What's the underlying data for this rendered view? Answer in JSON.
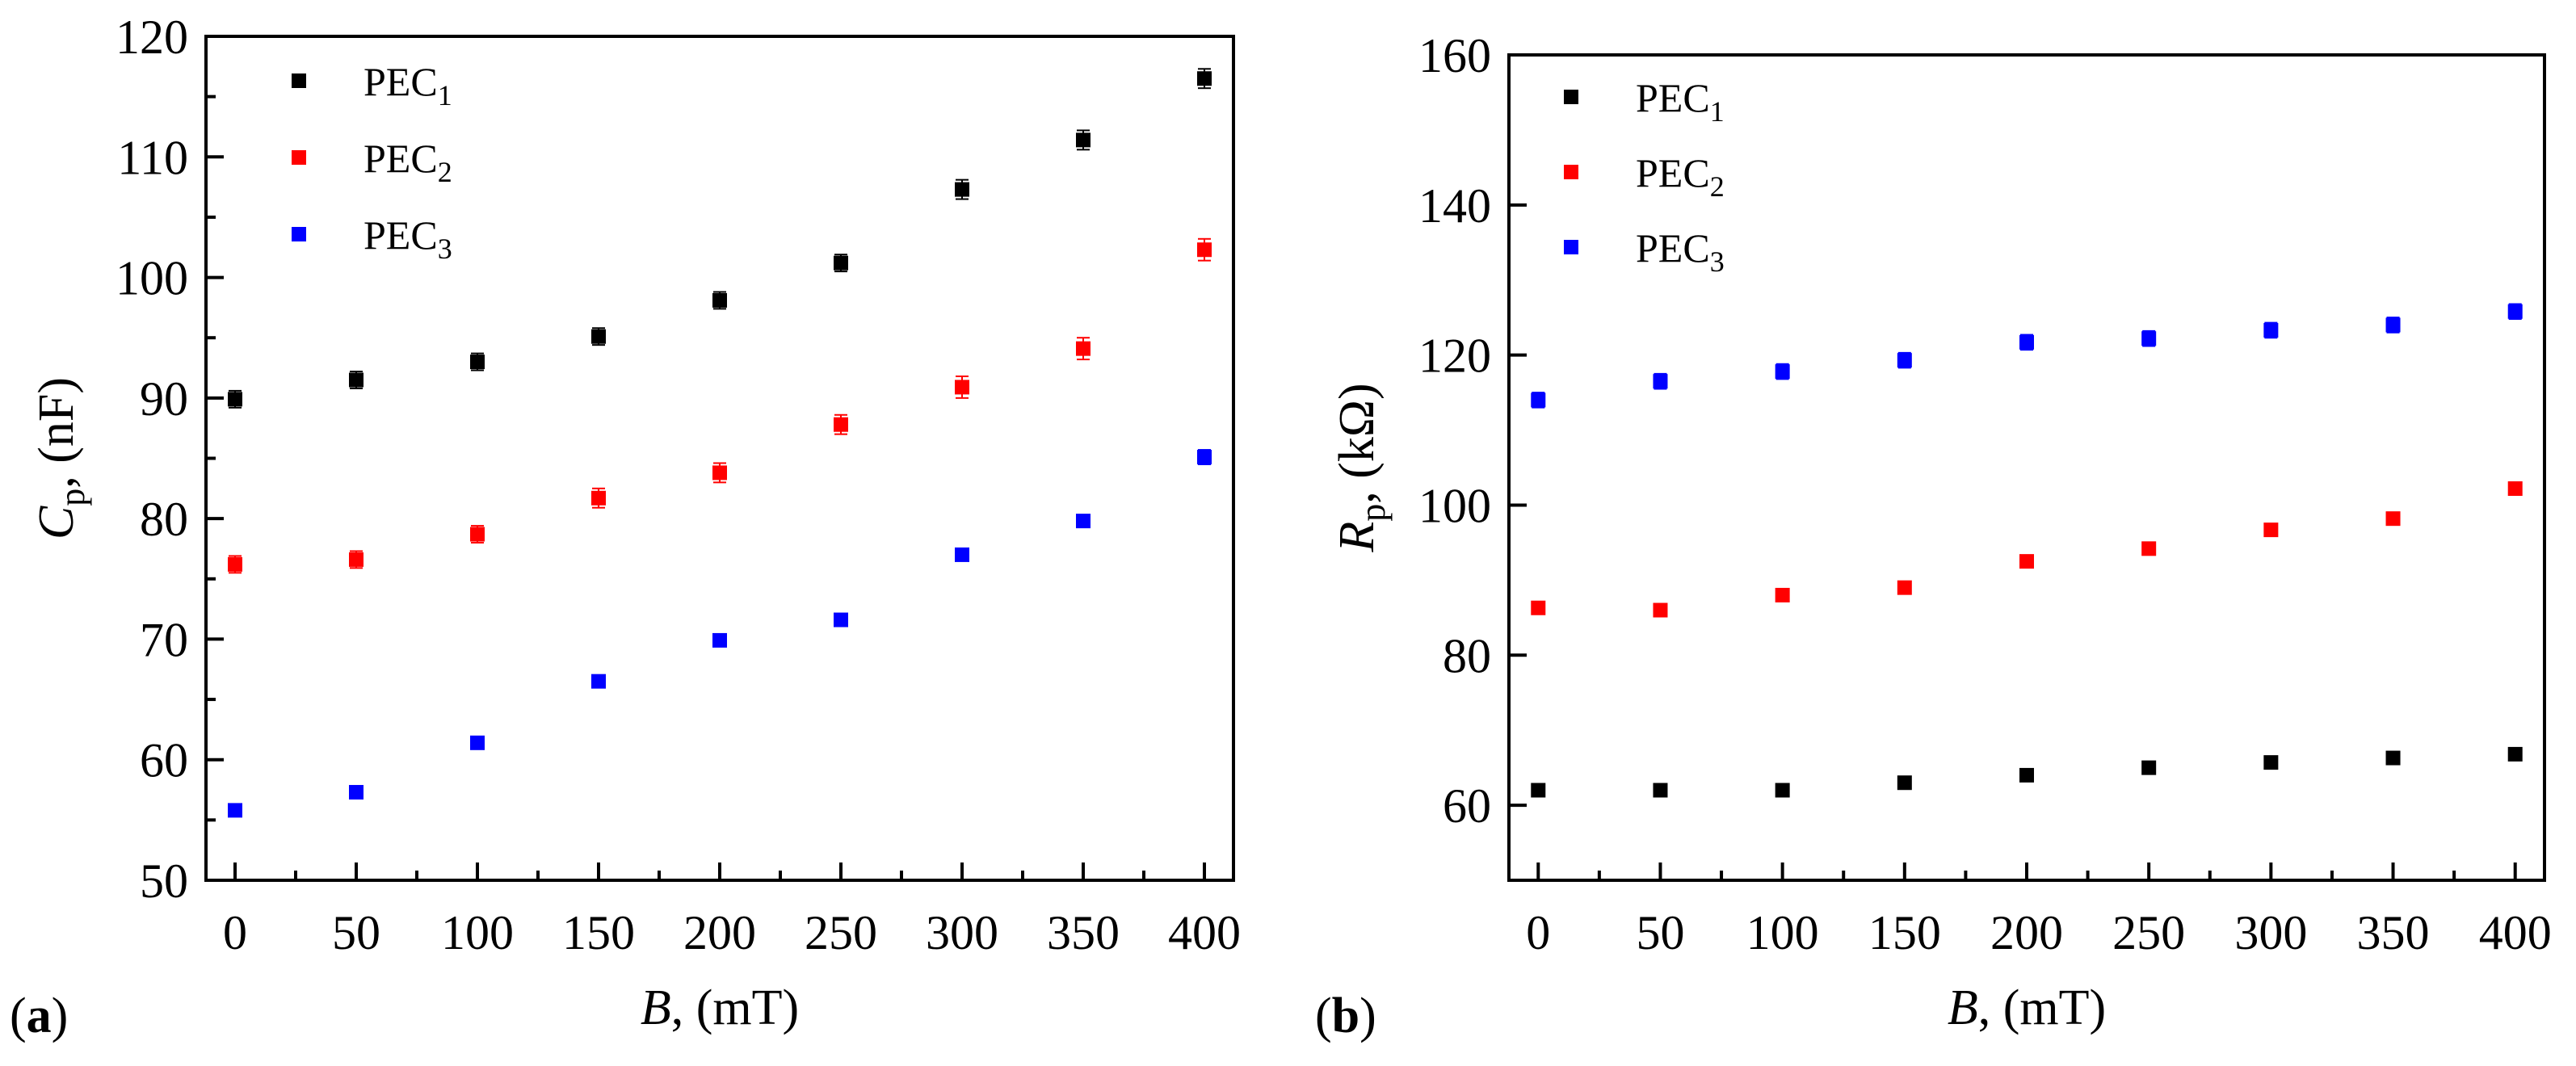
{
  "chart_data": [
    {
      "panel_label": "a",
      "type": "scatter",
      "ylabel": {
        "symbol": "C",
        "sub": "p",
        "unit": ", (nF)"
      },
      "xlabel": {
        "symbol": "B",
        "unit": ", (mT)"
      },
      "xlim": [
        -12,
        412
      ],
      "ylim": [
        50,
        120
      ],
      "xticks": [
        0,
        50,
        100,
        150,
        200,
        250,
        300,
        350,
        400
      ],
      "yticks": [
        50,
        60,
        70,
        80,
        90,
        100,
        110,
        120
      ],
      "legend_position": "top-left",
      "x": [
        0,
        50,
        100,
        150,
        200,
        250,
        300,
        350,
        400
      ],
      "series": [
        {
          "name": "PEC",
          "sub": "1",
          "color": "#000000",
          "values": [
            89.9,
            91.5,
            93.0,
            95.1,
            98.1,
            101.2,
            107.3,
            111.4,
            116.5
          ],
          "err": [
            0.7,
            0.7,
            0.7,
            0.7,
            0.7,
            0.7,
            0.8,
            0.8,
            0.8
          ]
        },
        {
          "name": "PEC",
          "sub": "2",
          "color": "#ff0000",
          "values": [
            76.2,
            76.6,
            78.7,
            81.7,
            83.8,
            87.8,
            90.9,
            94.1,
            102.3
          ],
          "err": [
            0.7,
            0.7,
            0.7,
            0.8,
            0.8,
            0.8,
            0.9,
            0.9,
            0.9
          ]
        },
        {
          "name": "PEC",
          "sub": "3",
          "color": "#0000ff",
          "values": [
            55.8,
            57.3,
            61.4,
            66.5,
            69.9,
            71.6,
            77.0,
            79.8,
            85.1
          ],
          "err": [
            0.4,
            0.4,
            0.4,
            0.4,
            0.4,
            0.4,
            0.5,
            0.5,
            0.6
          ]
        }
      ]
    },
    {
      "panel_label": "b",
      "type": "scatter",
      "ylabel": {
        "symbol": "R",
        "sub": "p",
        "unit": ", (kΩ)"
      },
      "xlabel": {
        "symbol": "B",
        "unit": ", (mT)"
      },
      "xlim": [
        -12,
        412
      ],
      "ylim": [
        50,
        160
      ],
      "xticks": [
        0,
        50,
        100,
        150,
        200,
        250,
        300,
        350,
        400
      ],
      "yticks": [
        60,
        80,
        100,
        120,
        140,
        160
      ],
      "legend_position": "top-left",
      "x": [
        0,
        50,
        100,
        150,
        200,
        250,
        300,
        350,
        400
      ],
      "series": [
        {
          "name": "PEC",
          "sub": "1",
          "color": "#000000",
          "values": [
            62.0,
            62.0,
            62.0,
            63.0,
            64.0,
            65.0,
            65.7,
            66.3,
            66.8
          ],
          "err": [
            0.5,
            0.5,
            0.5,
            0.5,
            0.5,
            0.5,
            0.5,
            0.5,
            0.5
          ]
        },
        {
          "name": "PEC",
          "sub": "2",
          "color": "#ff0000",
          "values": [
            86.3,
            86.0,
            88.0,
            89.0,
            92.5,
            94.2,
            96.7,
            98.2,
            102.2
          ],
          "err": [
            0.6,
            0.6,
            0.6,
            0.6,
            0.6,
            0.6,
            0.6,
            0.6,
            0.6
          ]
        },
        {
          "name": "PEC",
          "sub": "3",
          "color": "#0000ff",
          "values": [
            114.0,
            116.5,
            117.8,
            119.3,
            121.7,
            122.2,
            123.3,
            124.0,
            125.8
          ],
          "err": [
            1.0,
            1.0,
            1.0,
            1.0,
            1.0,
            1.0,
            1.0,
            1.0,
            1.0
          ]
        }
      ]
    }
  ]
}
